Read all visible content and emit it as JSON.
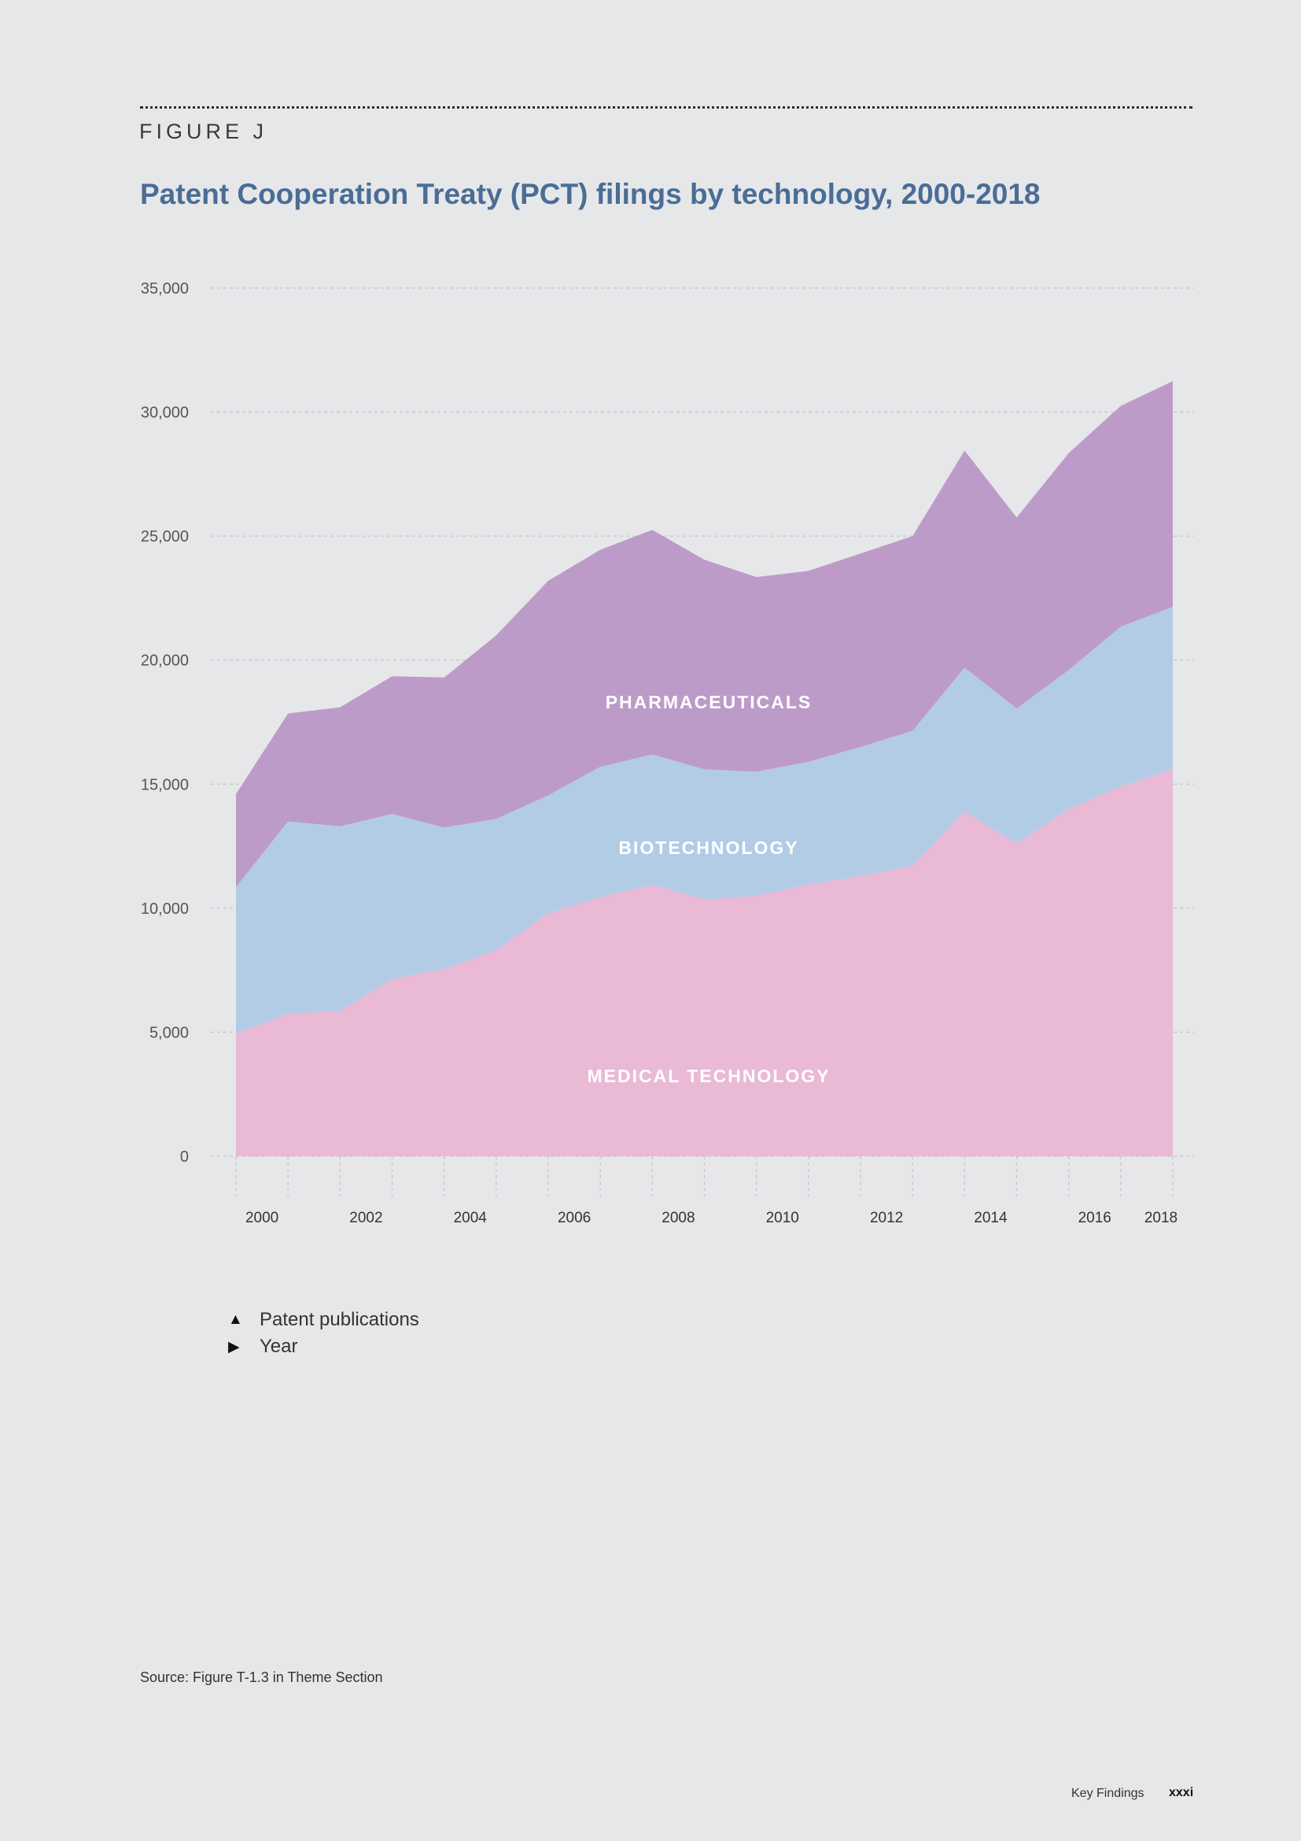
{
  "figure_label": "FIGURE J",
  "title": "Patent Cooperation Treaty (PCT) filings by technology, 2000-2018",
  "legend": [
    {
      "glyph": "▲",
      "label": "Patent publications"
    },
    {
      "glyph": "▶",
      "label": "Year"
    }
  ],
  "source": "Source: Figure T-1.3 in Theme Section",
  "footer": {
    "section": "Key Findings",
    "page": "xxxi"
  },
  "colors": {
    "medical_technology": "#e9b9d6",
    "biotechnology": "#b3cce5",
    "pharmaceuticals": "#bd9bc8",
    "title": "#4a6d96",
    "background": "#e6e7e9"
  },
  "chart_data": {
    "type": "area",
    "stacked": true,
    "title": "Patent Cooperation Treaty (PCT) filings by technology, 2000-2018",
    "xlabel": "",
    "ylabel": "",
    "x": [
      2000,
      2001,
      2002,
      2003,
      2004,
      2005,
      2006,
      2007,
      2008,
      2009,
      2010,
      2011,
      2012,
      2013,
      2014,
      2015,
      2016,
      2017,
      2018
    ],
    "x_tick_labels": [
      "2000",
      "2002",
      "2004",
      "2006",
      "2008",
      "2010",
      "2012",
      "2014",
      "2016",
      "2018"
    ],
    "y_ticks": [
      0,
      5000,
      10000,
      15000,
      20000,
      25000,
      30000,
      35000
    ],
    "y_tick_labels": [
      "0",
      "5,000",
      "10,000",
      "15,000",
      "20,000",
      "25,000",
      "30,000",
      "35,000"
    ],
    "ylim": [
      0,
      35000
    ],
    "grid": true,
    "series": [
      {
        "name": "MEDICAL TECHNOLOGY",
        "color": "#e9b9d6",
        "values": [
          4950,
          5750,
          5850,
          7150,
          7550,
          8300,
          9800,
          10450,
          10950,
          10350,
          10500,
          10950,
          11300,
          11700,
          13900,
          12600,
          14000,
          14900,
          15600
        ]
      },
      {
        "name": "BIOTECHNOLOGY",
        "color": "#b3cce5",
        "values": [
          5900,
          7750,
          7450,
          6650,
          5700,
          5300,
          4750,
          5250,
          5250,
          5250,
          5000,
          4950,
          5200,
          5450,
          5800,
          5450,
          5600,
          6450,
          6550
        ]
      },
      {
        "name": "PHARMACEUTICALS",
        "color": "#bd9bc8",
        "values": [
          3750,
          4350,
          4800,
          5550,
          6050,
          7400,
          8650,
          8750,
          9050,
          8450,
          7850,
          7700,
          7800,
          7850,
          8750,
          7700,
          8750,
          8900,
          9100
        ]
      }
    ],
    "annotations": [
      "PHARMACEUTICALS",
      "BIOTECHNOLOGY",
      "MEDICAL TECHNOLOGY"
    ]
  }
}
